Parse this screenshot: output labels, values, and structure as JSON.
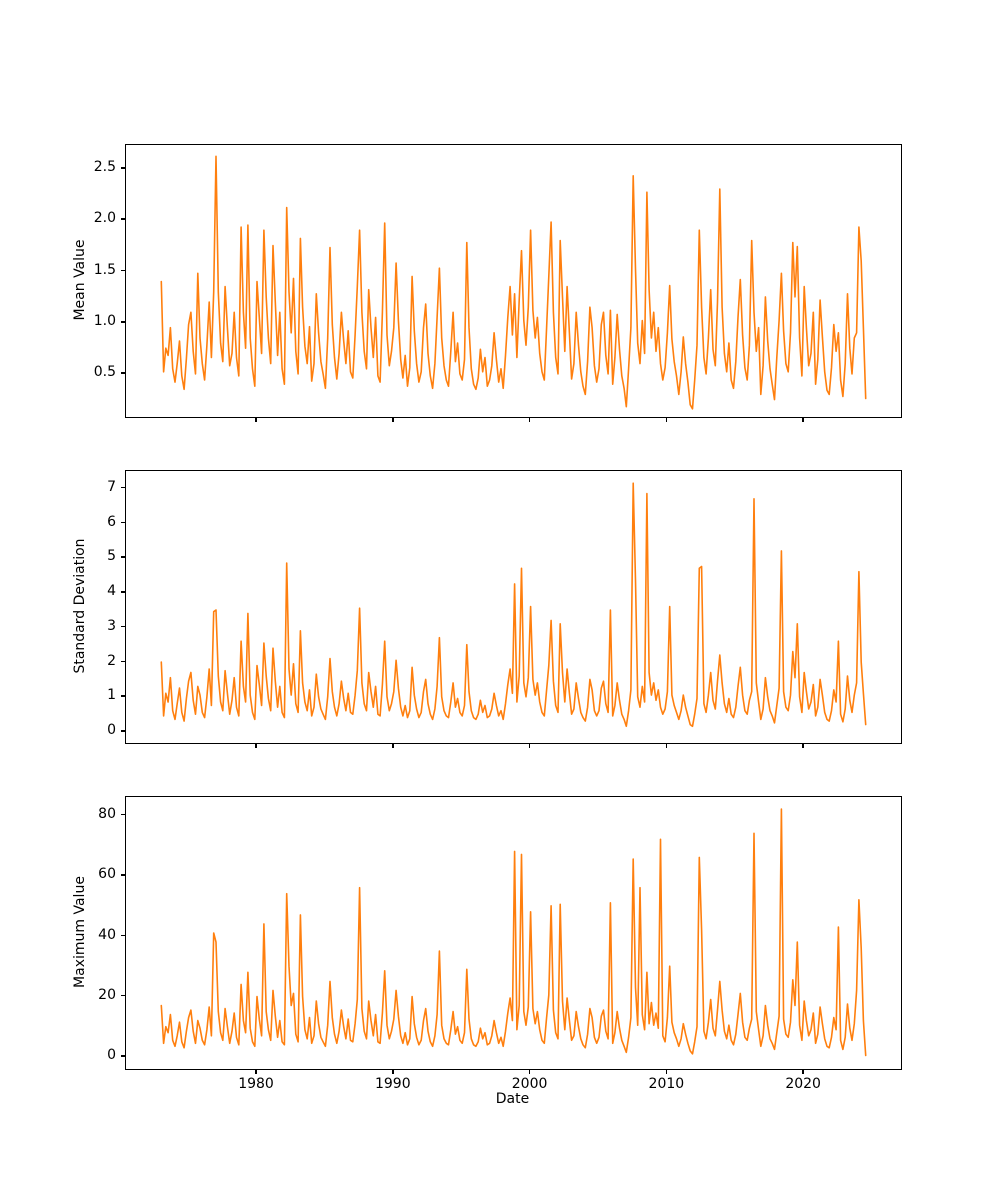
{
  "figure": {
    "background": "#ffffff",
    "series_color": "#ff7f0e",
    "spine_color": "#000000"
  },
  "x_axis": {
    "label": "Date",
    "xlim": [
      1970.42,
      2027.08
    ],
    "x_start": 1973.0,
    "x_step": 0.166667,
    "ticks": [
      1980,
      1990,
      2000,
      2010,
      2020
    ],
    "tick_labels": [
      "1980",
      "1990",
      "2000",
      "2010",
      "2020"
    ]
  },
  "chart_data": [
    {
      "type": "line",
      "ylabel": "Mean Value",
      "yticks": [
        0.5,
        1.0,
        1.5,
        2.0,
        2.5
      ],
      "ytick_labels": [
        "0.5",
        "1.0",
        "1.5",
        "2.0",
        "2.5"
      ],
      "ylim": [
        0.08,
        2.73
      ],
      "values": [
        1.4,
        0.52,
        0.75,
        0.68,
        0.95,
        0.55,
        0.42,
        0.6,
        0.82,
        0.48,
        0.35,
        0.65,
        0.98,
        1.1,
        0.72,
        0.5,
        1.48,
        0.85,
        0.6,
        0.44,
        0.78,
        1.2,
        0.66,
        1.3,
        2.62,
        1.3,
        0.8,
        0.62,
        1.35,
        0.95,
        0.58,
        0.7,
        1.1,
        0.66,
        0.48,
        1.93,
        1.1,
        0.75,
        1.95,
        0.85,
        0.55,
        0.38,
        1.4,
        1.05,
        0.7,
        1.9,
        1.25,
        0.85,
        0.6,
        1.75,
        1.2,
        0.68,
        1.1,
        0.55,
        0.4,
        2.12,
        1.3,
        0.9,
        1.43,
        0.72,
        0.5,
        1.82,
        1.15,
        0.77,
        0.6,
        0.96,
        0.43,
        0.6,
        1.28,
        0.9,
        0.62,
        0.5,
        0.36,
        0.85,
        1.73,
        0.98,
        0.66,
        0.45,
        0.7,
        1.1,
        0.82,
        0.6,
        0.92,
        0.52,
        0.46,
        0.88,
        1.35,
        1.9,
        1.1,
        0.72,
        0.55,
        1.32,
        0.95,
        0.66,
        1.05,
        0.48,
        0.42,
        1.1,
        1.97,
        0.88,
        0.58,
        0.72,
        0.95,
        1.58,
        1.02,
        0.64,
        0.46,
        0.68,
        0.38,
        0.56,
        1.45,
        0.92,
        0.6,
        0.42,
        0.52,
        0.95,
        1.18,
        0.7,
        0.48,
        0.36,
        0.6,
        1.05,
        1.53,
        0.85,
        0.58,
        0.44,
        0.38,
        0.72,
        1.1,
        0.62,
        0.8,
        0.5,
        0.44,
        0.64,
        1.78,
        0.95,
        0.55,
        0.4,
        0.35,
        0.46,
        0.74,
        0.52,
        0.66,
        0.38,
        0.44,
        0.58,
        0.9,
        0.64,
        0.42,
        0.55,
        0.36,
        0.68,
        1.05,
        1.35,
        0.88,
        1.28,
        0.66,
        1.22,
        1.7,
        1.02,
        0.78,
        1.15,
        1.9,
        1.12,
        0.85,
        1.05,
        0.7,
        0.52,
        0.44,
        0.95,
        1.45,
        1.98,
        1.1,
        0.66,
        0.5,
        1.8,
        1.25,
        0.72,
        1.35,
        0.9,
        0.45,
        0.6,
        1.1,
        0.78,
        0.52,
        0.38,
        0.3,
        0.62,
        1.15,
        0.95,
        0.58,
        0.42,
        0.55,
        0.98,
        1.1,
        0.68,
        0.5,
        1.12,
        0.4,
        0.66,
        1.08,
        0.74,
        0.48,
        0.36,
        0.18,
        0.55,
        0.95,
        2.43,
        1.52,
        0.8,
        0.6,
        1.02,
        0.7,
        2.27,
        1.32,
        0.85,
        1.1,
        0.72,
        0.95,
        0.6,
        0.44,
        0.56,
        0.9,
        1.36,
        0.84,
        0.62,
        0.48,
        0.3,
        0.52,
        0.86,
        0.6,
        0.42,
        0.2,
        0.16,
        0.44,
        0.78,
        1.9,
        1.15,
        0.66,
        0.5,
        0.85,
        1.32,
        0.74,
        0.58,
        1.2,
        2.3,
        1.15,
        0.7,
        0.52,
        0.8,
        0.44,
        0.36,
        0.62,
        1.05,
        1.42,
        0.88,
        0.56,
        0.44,
        0.78,
        1.8,
        1.1,
        0.72,
        0.95,
        0.3,
        0.58,
        1.25,
        0.82,
        0.55,
        0.4,
        0.25,
        0.66,
        1.02,
        1.48,
        0.92,
        0.6,
        0.52,
        0.9,
        1.78,
        1.25,
        1.74,
        0.85,
        0.48,
        1.35,
        0.95,
        0.58,
        0.7,
        1.1,
        0.4,
        0.64,
        1.22,
        0.86,
        0.52,
        0.34,
        0.3,
        0.56,
        0.98,
        0.72,
        0.9,
        0.44,
        0.28,
        0.6,
        1.28,
        0.75,
        0.5,
        0.85,
        0.9,
        1.93,
        1.6,
        0.95,
        0.26
      ]
    },
    {
      "type": "line",
      "ylabel": "Standard Deviation",
      "yticks": [
        0,
        1,
        2,
        3,
        4,
        5,
        6,
        7
      ],
      "ytick_labels": [
        "0",
        "1",
        "2",
        "3",
        "4",
        "5",
        "6",
        "7"
      ],
      "ylim": [
        -0.33,
        7.5
      ],
      "values": [
        2.0,
        0.45,
        1.1,
        0.85,
        1.55,
        0.6,
        0.35,
        0.8,
        1.25,
        0.55,
        0.3,
        0.95,
        1.45,
        1.7,
        0.9,
        0.5,
        1.3,
        1.05,
        0.55,
        0.4,
        1.0,
        1.8,
        0.75,
        3.45,
        3.5,
        1.6,
        0.85,
        0.6,
        1.75,
        1.1,
        0.5,
        0.9,
        1.55,
        0.7,
        0.45,
        2.6,
        1.3,
        0.85,
        3.4,
        1.05,
        0.55,
        0.35,
        1.9,
        1.35,
        0.75,
        2.55,
        1.6,
        0.95,
        0.6,
        2.4,
        1.45,
        0.7,
        1.3,
        0.55,
        0.4,
        4.85,
        1.8,
        1.05,
        1.95,
        0.8,
        0.55,
        2.9,
        1.4,
        0.85,
        0.6,
        1.2,
        0.45,
        0.7,
        1.65,
        1.0,
        0.65,
        0.5,
        0.35,
        1.0,
        2.1,
        1.15,
        0.7,
        0.45,
        0.8,
        1.45,
        0.95,
        0.6,
        1.1,
        0.55,
        0.5,
        1.05,
        1.75,
        3.55,
        1.4,
        0.8,
        0.6,
        1.7,
        1.15,
        0.7,
        1.3,
        0.5,
        0.45,
        1.35,
        2.6,
        1.0,
        0.6,
        0.8,
        1.15,
        2.05,
        1.25,
        0.7,
        0.45,
        0.75,
        0.4,
        0.6,
        1.85,
        1.05,
        0.65,
        0.4,
        0.55,
        1.15,
        1.5,
        0.8,
        0.5,
        0.35,
        0.65,
        1.3,
        2.7,
        1.0,
        0.6,
        0.45,
        0.4,
        0.85,
        1.4,
        0.7,
        0.95,
        0.55,
        0.45,
        0.75,
        2.5,
        1.15,
        0.6,
        0.4,
        0.35,
        0.5,
        0.9,
        0.55,
        0.75,
        0.4,
        0.45,
        0.65,
        1.1,
        0.75,
        0.45,
        0.6,
        0.35,
        0.8,
        1.35,
        1.8,
        1.1,
        4.25,
        0.85,
        1.6,
        4.7,
        1.4,
        1.0,
        1.55,
        3.6,
        1.5,
        1.05,
        1.4,
        0.85,
        0.55,
        0.45,
        1.2,
        1.9,
        3.2,
        1.45,
        0.75,
        0.55,
        3.1,
        1.7,
        0.85,
        1.8,
        1.1,
        0.5,
        0.65,
        1.4,
        0.95,
        0.55,
        0.4,
        0.3,
        0.7,
        1.5,
        1.2,
        0.6,
        0.45,
        0.6,
        1.25,
        1.45,
        0.8,
        0.55,
        3.5,
        0.45,
        0.75,
        1.4,
        0.9,
        0.5,
        0.35,
        0.15,
        0.6,
        1.2,
        7.15,
        4.35,
        1.0,
        0.7,
        1.3,
        0.85,
        6.85,
        1.7,
        1.05,
        1.4,
        0.9,
        1.2,
        0.7,
        0.5,
        0.65,
        1.15,
        3.6,
        1.05,
        0.75,
        0.55,
        0.35,
        0.6,
        1.05,
        0.7,
        0.45,
        0.2,
        0.15,
        0.5,
        0.95,
        4.7,
        4.75,
        0.8,
        0.55,
        1.05,
        1.7,
        0.9,
        0.65,
        1.45,
        2.2,
        1.4,
        0.8,
        0.55,
        0.95,
        0.5,
        0.4,
        0.7,
        1.3,
        1.85,
        1.05,
        0.6,
        0.5,
        0.9,
        1.15,
        6.7,
        1.4,
        0.85,
        0.35,
        0.65,
        1.55,
        1.0,
        0.6,
        0.45,
        0.25,
        0.75,
        1.25,
        5.2,
        1.15,
        0.7,
        0.6,
        1.05,
        2.3,
        1.55,
        3.1,
        1.0,
        0.55,
        1.7,
        1.15,
        0.65,
        0.85,
        1.35,
        0.45,
        0.7,
        1.5,
        1.05,
        0.55,
        0.35,
        0.3,
        0.6,
        1.2,
        0.85,
        2.6,
        0.5,
        0.28,
        0.65,
        1.6,
        0.9,
        0.55,
        1.05,
        1.4,
        4.6,
        2.0,
        1.1,
        0.2
      ]
    },
    {
      "type": "line",
      "ylabel": "Maximum Value",
      "yticks": [
        0,
        20,
        40,
        60,
        80
      ],
      "ytick_labels": [
        "0",
        "20",
        "40",
        "60",
        "80"
      ],
      "ylim": [
        -4.0,
        86.0
      ],
      "values": [
        17.0,
        4.5,
        10.0,
        8.0,
        14.0,
        5.5,
        3.5,
        7.0,
        11.5,
        5.0,
        3.0,
        8.5,
        13.0,
        15.5,
        8.5,
        4.5,
        12.0,
        9.5,
        5.5,
        4.0,
        9.0,
        16.5,
        7.0,
        41.0,
        38.0,
        15.0,
        8.0,
        5.5,
        16.0,
        10.0,
        4.5,
        8.5,
        14.5,
        6.5,
        4.0,
        24.0,
        12.0,
        8.0,
        28.0,
        9.5,
        5.0,
        3.5,
        20.0,
        12.5,
        7.0,
        44.0,
        15.0,
        9.0,
        5.5,
        22.0,
        13.5,
        6.5,
        12.0,
        5.0,
        4.0,
        54.0,
        30.0,
        17.0,
        21.0,
        7.5,
        5.0,
        47.0,
        20.0,
        9.0,
        6.0,
        13.0,
        4.5,
        7.0,
        18.5,
        11.0,
        6.5,
        5.0,
        3.5,
        10.5,
        25.0,
        13.0,
        7.5,
        4.5,
        8.5,
        15.5,
        10.0,
        6.0,
        12.5,
        5.5,
        5.0,
        11.0,
        19.0,
        56.0,
        16.0,
        8.5,
        6.0,
        18.5,
        12.0,
        7.0,
        14.0,
        5.0,
        4.5,
        14.5,
        28.5,
        10.5,
        6.0,
        8.5,
        12.5,
        22.0,
        13.5,
        7.0,
        4.5,
        8.0,
        4.0,
        6.0,
        20.0,
        11.0,
        6.5,
        4.0,
        5.5,
        12.0,
        16.0,
        8.5,
        5.0,
        3.5,
        7.0,
        14.0,
        35.0,
        10.5,
        6.0,
        4.5,
        4.0,
        9.0,
        15.0,
        7.5,
        10.0,
        5.5,
        4.5,
        8.0,
        29.0,
        12.5,
        6.0,
        4.0,
        3.5,
        5.0,
        9.5,
        6.0,
        8.0,
        4.0,
        4.5,
        7.0,
        12.0,
        8.0,
        4.5,
        6.5,
        3.5,
        8.5,
        14.5,
        19.5,
        12.0,
        68.0,
        9.0,
        17.0,
        67.0,
        15.0,
        10.5,
        16.5,
        48.0,
        16.0,
        11.0,
        15.0,
        9.0,
        5.5,
        4.5,
        13.0,
        20.5,
        50.0,
        15.5,
        8.0,
        6.0,
        50.5,
        18.5,
        9.0,
        19.5,
        12.0,
        5.5,
        7.0,
        15.0,
        10.0,
        6.0,
        4.0,
        3.0,
        7.5,
        16.0,
        13.0,
        6.5,
        4.5,
        6.5,
        13.5,
        15.5,
        8.5,
        6.0,
        51.0,
        4.5,
        8.0,
        15.0,
        9.5,
        5.5,
        3.5,
        1.5,
        6.5,
        13.0,
        65.5,
        23.0,
        10.5,
        56.0,
        14.0,
        9.0,
        28.0,
        11.0,
        18.0,
        10.5,
        14.5,
        9.5,
        72.0,
        7.0,
        5.0,
        13.0,
        30.0,
        11.5,
        8.0,
        6.0,
        3.5,
        6.0,
        11.0,
        7.5,
        4.5,
        2.0,
        1.0,
        5.0,
        10.0,
        66.0,
        42.0,
        8.5,
        6.0,
        11.5,
        19.0,
        9.5,
        7.0,
        15.5,
        25.0,
        15.5,
        8.5,
        6.0,
        10.5,
        5.5,
        4.0,
        7.5,
        14.0,
        21.0,
        11.5,
        6.5,
        5.5,
        9.5,
        12.5,
        74.0,
        15.0,
        9.0,
        3.5,
        7.0,
        17.0,
        10.5,
        6.0,
        4.5,
        2.5,
        8.0,
        13.5,
        82.0,
        12.5,
        7.5,
        6.5,
        11.5,
        25.5,
        17.0,
        38.0,
        10.5,
        5.5,
        18.5,
        12.0,
        7.0,
        9.0,
        14.5,
        4.5,
        7.5,
        16.5,
        11.0,
        6.0,
        3.5,
        3.0,
        6.5,
        13.0,
        9.0,
        43.0,
        5.5,
        2.5,
        6.5,
        17.5,
        9.5,
        5.5,
        11.0,
        22.0,
        52.0,
        36.0,
        12.0,
        0.5
      ]
    }
  ]
}
